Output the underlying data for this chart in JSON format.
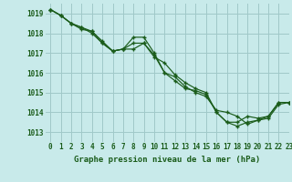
{
  "title": "Graphe pression niveau de la mer (hPa)",
  "bg_color": "#c8eaea",
  "grid_color": "#a0c8c8",
  "line_color": "#1a5c1a",
  "xlim": [
    -0.5,
    23
  ],
  "ylim": [
    1012.5,
    1019.5
  ],
  "yticks": [
    1013,
    1014,
    1015,
    1016,
    1017,
    1018,
    1019
  ],
  "xticks": [
    0,
    1,
    2,
    3,
    4,
    5,
    6,
    7,
    8,
    9,
    10,
    11,
    12,
    13,
    14,
    15,
    16,
    17,
    18,
    19,
    20,
    21,
    22,
    23
  ],
  "series": [
    [
      1019.2,
      1018.9,
      1018.5,
      1018.3,
      1018.1,
      1017.5,
      1017.1,
      1017.2,
      1017.5,
      1017.5,
      1016.9,
      1016.0,
      1015.6,
      1015.2,
      1015.1,
      1014.9,
      1014.0,
      1013.5,
      1013.3,
      1013.5,
      1013.6,
      1013.8,
      1014.5,
      1014.5
    ],
    [
      1019.2,
      1018.9,
      1018.5,
      1018.2,
      1018.1,
      1017.6,
      1017.1,
      1017.2,
      1017.8,
      1017.8,
      1017.0,
      1016.0,
      1015.8,
      1015.3,
      1015.0,
      1014.8,
      1014.1,
      1014.0,
      1013.8,
      1013.4,
      1013.6,
      1013.7,
      1014.4,
      1014.5
    ],
    [
      1019.2,
      1018.9,
      1018.5,
      1018.3,
      1018.0,
      1017.5,
      1017.1,
      1017.2,
      1017.2,
      1017.5,
      1016.8,
      1016.5,
      1015.9,
      1015.5,
      1015.2,
      1015.0,
      1014.0,
      1013.5,
      1013.5,
      1013.8,
      1013.7,
      1013.8,
      1014.5,
      1014.5
    ]
  ]
}
